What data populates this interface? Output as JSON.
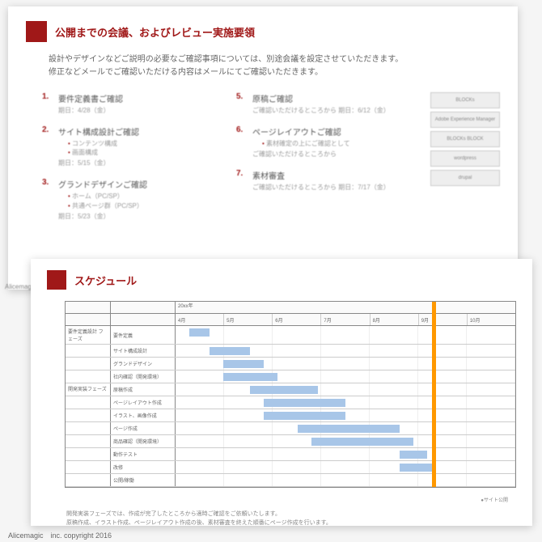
{
  "accent_color": "#a01818",
  "bar_color": "#a8c6e8",
  "milestone_color": "#ff9800",
  "page1": {
    "title": "公開までの会議、およびレビュー実施要領",
    "intro_line1": "設計やデザインなどご説明の必要なご確認事項については、別途会議を設定させていただきます。",
    "intro_line2": "修正などメールでご確認いただける内容はメールにてご確認いただきます。",
    "items_left": [
      {
        "num": "1.",
        "title": "要件定義書ご確認",
        "sub": "期日：4/28（金）",
        "bullets": []
      },
      {
        "num": "2.",
        "title": "サイト構成設計ご確認",
        "sub": "期日：5/15（金）",
        "bullets": [
          "コンテンツ構成",
          "画面構成"
        ]
      },
      {
        "num": "3.",
        "title": "グランドデザインご確認",
        "sub": "期日：5/23（金）",
        "bullets": [
          "ホーム（PC/SP）",
          "共通ページ群（PC/SP）"
        ]
      }
    ],
    "items_right": [
      {
        "num": "5.",
        "title": "原稿ご確認",
        "sub": "ご確認いただけるところから\n期日：6/12（金）",
        "bullets": []
      },
      {
        "num": "6.",
        "title": "ページレイアウトご確認",
        "sub": "ご確認いただけるところから",
        "bullets": [
          "素材確定の上にご確認として"
        ]
      },
      {
        "num": "7.",
        "title": "素材審査",
        "sub": "ご確認いただけるところから\n期日：7/17（金）",
        "bullets": []
      }
    ],
    "sideboxes": [
      "BLOCKs",
      "Adobe Experience Manager",
      "BLOCKs\nBLOCK",
      "wordpress",
      "drupal"
    ]
  },
  "page2": {
    "title": "スケジュール",
    "year": "20xx年",
    "months": [
      "4月",
      "5月",
      "6月",
      "7月",
      "8月",
      "9月",
      "10月"
    ],
    "phases": [
      {
        "label": "要件定義設計\nフェーズ",
        "rows": [
          {
            "task": "要件定義",
            "bar": [
              0.04,
              0.1
            ]
          },
          {
            "task": "サイト構成設計",
            "bar": [
              0.1,
              0.22
            ]
          },
          {
            "task": "グランドデザイン",
            "bar": [
              0.14,
              0.26
            ]
          },
          {
            "task": "社内確認（開発環境）",
            "bar": [
              0.14,
              0.3
            ]
          }
        ]
      },
      {
        "label": "開発実装フェーズ",
        "rows": [
          {
            "task": "原稿作成",
            "bar": [
              0.22,
              0.42
            ]
          },
          {
            "task": "ページレイアウト作成",
            "bar": [
              0.26,
              0.5
            ]
          },
          {
            "task": "イラスト、画像作成",
            "bar": [
              0.26,
              0.5
            ]
          },
          {
            "task": "ページ作成",
            "bar": [
              0.36,
              0.66
            ]
          },
          {
            "task": "商品確認（開発環境）",
            "bar": [
              0.4,
              0.7
            ]
          },
          {
            "task": "動作テスト",
            "bar": [
              0.66,
              0.74
            ]
          },
          {
            "task": "改修",
            "bar": [
              0.66,
              0.76
            ]
          },
          {
            "task": "公開/稼働",
            "bar": null
          }
        ]
      }
    ],
    "milestone_x": 0.755,
    "legend": "●サイト公開",
    "note_line1": "開発実装フェーズでは、作成が完了したところから適時ご確認をご依頼いたします。",
    "note_line2": "原稿作成、イラスト作成、ページレイアウト作成の後、素材審査を終えた順番にページ作成を行います。"
  },
  "left_footer": "Alicemagic",
  "footer": "Alicemagic　inc. copyright 2016"
}
